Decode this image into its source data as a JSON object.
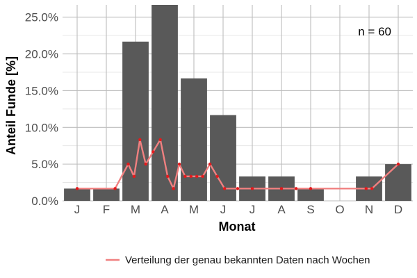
{
  "chart_data": {
    "type": "bar",
    "xlabel": "Monat",
    "ylabel": "Anteil Funde [%]",
    "categories": [
      "J",
      "F",
      "M",
      "A",
      "M",
      "J",
      "J",
      "A",
      "S",
      "O",
      "N",
      "D"
    ],
    "values": [
      1.67,
      1.67,
      21.67,
      26.67,
      16.67,
      11.67,
      3.33,
      3.33,
      1.67,
      0,
      3.33,
      5.0
    ],
    "ylim": [
      0,
      26.67
    ],
    "yticks": [
      0,
      5,
      10,
      15,
      20,
      25
    ],
    "ytick_labels": [
      "0.0%",
      "5.0%",
      "10.0%",
      "15.0%",
      "20.0%",
      "25.0%"
    ],
    "annotation": "n = 60",
    "grid": true,
    "colors": {
      "bar": "#595959",
      "line": "#f08080",
      "point": "#e31a1c",
      "grid": "#bdbdbd"
    },
    "series": [
      {
        "name": "Verteilung der genau bekannten Daten nach Wochen",
        "type": "line",
        "points": [
          [
            1,
            1.67
          ],
          [
            2.3,
            1.67
          ],
          [
            2.75,
            5.0
          ],
          [
            2.95,
            3.33
          ],
          [
            3.15,
            8.33
          ],
          [
            3.35,
            5.0
          ],
          [
            3.6,
            6.67
          ],
          [
            3.85,
            8.33
          ],
          [
            4.1,
            3.33
          ],
          [
            4.3,
            1.67
          ],
          [
            4.5,
            5.0
          ],
          [
            4.7,
            3.33
          ],
          [
            4.9,
            3.33
          ],
          [
            5.1,
            3.33
          ],
          [
            5.3,
            3.33
          ],
          [
            5.55,
            5.0
          ],
          [
            5.8,
            3.33
          ],
          [
            6.05,
            1.67
          ],
          [
            6.5,
            1.67
          ],
          [
            7.0,
            1.67
          ],
          [
            8.0,
            1.67
          ],
          [
            8.5,
            1.67
          ],
          [
            9.0,
            1.67
          ],
          [
            10.9,
            1.67
          ],
          [
            11.1,
            1.67
          ],
          [
            12.0,
            5.0
          ]
        ]
      }
    ],
    "legend_position": "bottom"
  }
}
